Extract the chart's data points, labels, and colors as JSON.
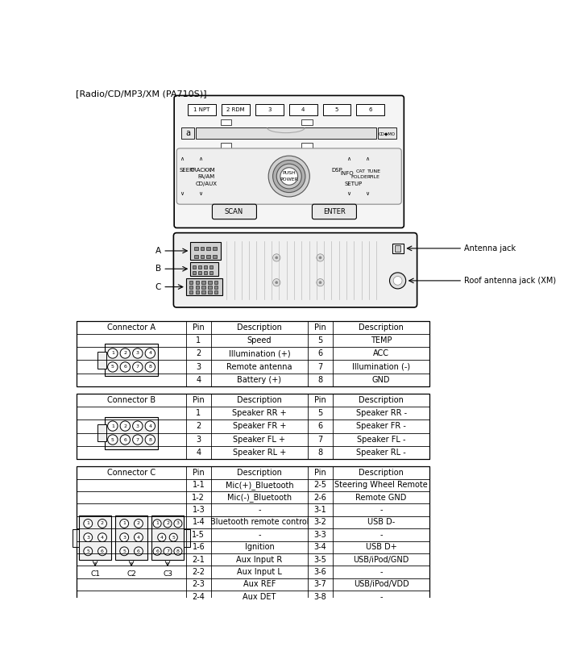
{
  "title": "[Radio/CD/MP3/XM (PA710S)]",
  "antenna_label": "Antenna jack",
  "roof_antenna_label": "Roof antenna jack (XM)",
  "connector_a_header": [
    "Connector A",
    "Pin",
    "Description",
    "Pin",
    "Description"
  ],
  "connector_a_rows": [
    [
      "",
      "1",
      "Speed",
      "5",
      "TEMP"
    ],
    [
      "",
      "2",
      "Illumination (+)",
      "6",
      "ACC"
    ],
    [
      "",
      "3",
      "Remote antenna",
      "7",
      "Illumination (-)"
    ],
    [
      "",
      "4",
      "Battery (+)",
      "8",
      "GND"
    ]
  ],
  "connector_b_header": [
    "Connector B",
    "Pin",
    "Description",
    "Pin",
    "Description"
  ],
  "connector_b_rows": [
    [
      "",
      "1",
      "Speaker RR +",
      "5",
      "Speaker RR -"
    ],
    [
      "",
      "2",
      "Speaker FR +",
      "6",
      "Speaker FR -"
    ],
    [
      "",
      "3",
      "Speaker FL +",
      "7",
      "Speaker FL -"
    ],
    [
      "",
      "4",
      "Speaker RL +",
      "8",
      "Speaker RL -"
    ]
  ],
  "connector_c_header": [
    "Connector C",
    "Pin",
    "Description",
    "Pin",
    "Description"
  ],
  "connector_c_rows": [
    [
      "",
      "1-1",
      "Mic(+)_Bluetooth",
      "2-5",
      "Steering Wheel Remote"
    ],
    [
      "",
      "1-2",
      "Mic(-)_Bluetooth",
      "2-6",
      "Remote GND"
    ],
    [
      "",
      "1-3",
      "-",
      "3-1",
      "-"
    ],
    [
      "",
      "1-4",
      "Bluetooth remote control",
      "3-2",
      "USB D-"
    ],
    [
      "",
      "1-5",
      "-",
      "3-3",
      "-"
    ],
    [
      "",
      "1-6",
      "Ignition",
      "3-4",
      "USB D+"
    ],
    [
      "",
      "2-1",
      "Aux Input R",
      "3-5",
      "USB/iPod/GND"
    ],
    [
      "",
      "2-2",
      "Aux Input L",
      "3-6",
      "-"
    ],
    [
      "",
      "2-3",
      "Aux REF",
      "3-7",
      "USB/iPod/VDD"
    ],
    [
      "",
      "2-4",
      "Aux DET",
      "3-8",
      "-"
    ]
  ],
  "bg_color": "#ffffff",
  "text_color": "#000000"
}
